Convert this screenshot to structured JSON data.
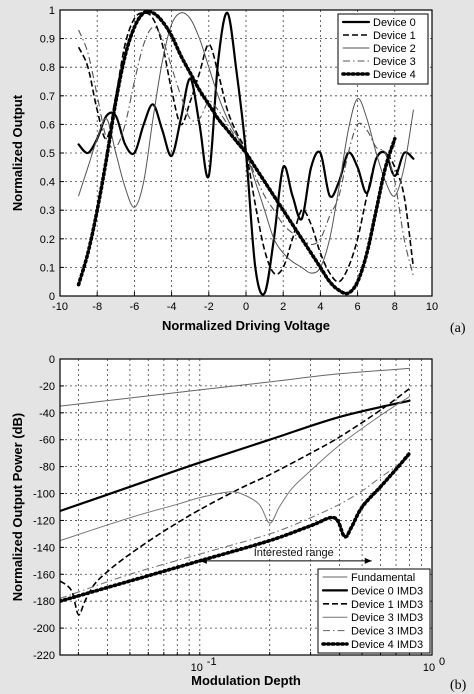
{
  "chart_data": [
    {
      "panel_label": "(a)",
      "type": "line",
      "xlabel": "Normalized Driving Voltage",
      "ylabel": "Normalized Output",
      "xlim": [
        -10,
        10
      ],
      "ylim": [
        0,
        1
      ],
      "xticks": [
        -10,
        -8,
        -6,
        -4,
        -2,
        0,
        2,
        4,
        6,
        8,
        10
      ],
      "yticks": [
        0,
        0.1,
        0.2,
        0.3,
        0.4,
        0.5,
        0.6,
        0.7,
        0.8,
        0.9,
        1
      ],
      "grid": true,
      "legend_position": "top-right",
      "series": [
        {
          "name": "Device 0",
          "style": "solid-thick",
          "color": "#000000",
          "x": [
            -9,
            -8.5,
            -8,
            -7.5,
            -7,
            -6.5,
            -6,
            -5.5,
            -5,
            -4.5,
            -4,
            -3.5,
            -3,
            -2.5,
            -2,
            -1.5,
            -1,
            -0.5,
            0,
            0.5,
            1,
            1.5,
            2,
            2.5,
            3,
            3.5,
            4,
            4.5,
            5,
            5.5,
            6,
            6.5,
            7,
            7.5,
            8,
            8.5,
            9
          ],
          "y": [
            0.53,
            0.5,
            0.55,
            0.63,
            0.63,
            0.53,
            0.5,
            0.6,
            0.67,
            0.58,
            0.49,
            0.62,
            0.76,
            0.6,
            0.42,
            0.82,
            0.99,
            0.78,
            0.5,
            0.1,
            0.01,
            0.2,
            0.45,
            0.35,
            0.27,
            0.45,
            0.5,
            0.35,
            0.4,
            0.5,
            0.45,
            0.36,
            0.48,
            0.5,
            0.42,
            0.5,
            0.48
          ]
        },
        {
          "name": "Device 1",
          "style": "dashed",
          "color": "#000000",
          "x": [
            -9,
            -8.5,
            -8,
            -7.5,
            -7,
            -6.5,
            -6,
            -5.5,
            -5,
            -4.5,
            -4,
            -3.5,
            -3,
            -2.5,
            -2,
            -1.5,
            -1,
            -0.5,
            0,
            0.5,
            1,
            1.5,
            2,
            2.5,
            3,
            3.5,
            4,
            4.5,
            5,
            5.5,
            6,
            6.5,
            7,
            7.5,
            8,
            8.5,
            9
          ],
          "y": [
            0.87,
            0.8,
            0.65,
            0.55,
            0.7,
            0.88,
            0.97,
            0.99,
            0.97,
            0.88,
            0.72,
            0.6,
            0.68,
            0.78,
            0.88,
            0.78,
            0.65,
            0.57,
            0.5,
            0.32,
            0.16,
            0.08,
            0.1,
            0.2,
            0.3,
            0.25,
            0.15,
            0.08,
            0.05,
            0.1,
            0.2,
            0.35,
            0.48,
            0.5,
            0.45,
            0.35,
            0.1
          ]
        },
        {
          "name": "Device 2",
          "style": "solid-thin",
          "color": "#555555",
          "x": [
            -9,
            -8.5,
            -8,
            -7.5,
            -7,
            -6.5,
            -6,
            -5.5,
            -5,
            -4.5,
            -4,
            -3.5,
            -3,
            -2.5,
            -2,
            -1.5,
            -1,
            -0.5,
            0,
            0.5,
            1,
            1.5,
            2,
            2.5,
            3,
            3.5,
            4,
            4.5,
            5,
            5.5,
            6,
            6.5,
            7,
            7.5,
            8,
            8.5,
            9
          ],
          "y": [
            0.35,
            0.45,
            0.55,
            0.62,
            0.5,
            0.38,
            0.31,
            0.4,
            0.62,
            0.82,
            0.95,
            0.99,
            0.97,
            0.9,
            0.8,
            0.7,
            0.62,
            0.56,
            0.5,
            0.4,
            0.3,
            0.2,
            0.15,
            0.12,
            0.1,
            0.08,
            0.1,
            0.2,
            0.38,
            0.58,
            0.69,
            0.62,
            0.5,
            0.4,
            0.35,
            0.45,
            0.65
          ]
        },
        {
          "name": "Device 3",
          "style": "dashdot",
          "color": "#555555",
          "x": [
            -9,
            -8.5,
            -8,
            -7.5,
            -7,
            -6.5,
            -6,
            -5.5,
            -5,
            -4.5,
            -4,
            -3.5,
            -3,
            -2.5,
            -2,
            -1.5,
            -1,
            -0.5,
            0,
            0.5,
            1,
            1.5,
            2,
            2.5,
            3,
            3.5,
            4,
            4.5,
            5,
            5.5,
            6,
            6.5,
            7,
            7.5,
            8,
            8.5,
            9
          ],
          "y": [
            0.93,
            0.85,
            0.7,
            0.55,
            0.52,
            0.6,
            0.75,
            0.88,
            0.94,
            0.9,
            0.8,
            0.7,
            0.62,
            0.62,
            0.68,
            0.65,
            0.6,
            0.55,
            0.5,
            0.42,
            0.35,
            0.3,
            0.25,
            0.22,
            0.2,
            0.18,
            0.2,
            0.28,
            0.35,
            0.5,
            0.6,
            0.58,
            0.52,
            0.5,
            0.4,
            0.2,
            0.07
          ]
        },
        {
          "name": "Device 4",
          "style": "dotted-thick",
          "color": "#000000",
          "x": [
            -9,
            -8.5,
            -8,
            -7.5,
            -7,
            -6.5,
            -6,
            -5.5,
            -5,
            -4.5,
            -4,
            -3.5,
            -3,
            -2.5,
            -2,
            -1.5,
            -1,
            -0.5,
            0,
            0.5,
            1,
            1.5,
            2,
            2.5,
            3,
            3.5,
            4,
            4.5,
            5,
            5.5,
            6,
            6.5,
            7,
            7.5,
            8
          ],
          "y": [
            0.04,
            0.15,
            0.3,
            0.48,
            0.68,
            0.84,
            0.94,
            0.99,
            0.99,
            0.96,
            0.91,
            0.84,
            0.78,
            0.72,
            0.67,
            0.62,
            0.58,
            0.54,
            0.5,
            0.45,
            0.4,
            0.35,
            0.3,
            0.25,
            0.2,
            0.15,
            0.1,
            0.05,
            0.02,
            0.01,
            0.05,
            0.15,
            0.3,
            0.45,
            0.55
          ]
        }
      ]
    },
    {
      "panel_label": "(b)",
      "type": "line",
      "xscale": "log",
      "xlabel": "Modulation Depth",
      "ylabel": "Normalized Output Power (dB)",
      "xlim": [
        0.025,
        1
      ],
      "ylim": [
        -220,
        0
      ],
      "xticks_labels": [
        "10",
        "10"
      ],
      "xticks_exponents": [
        "-1",
        "0"
      ],
      "xticks_values": [
        0.1,
        1
      ],
      "yticks": [
        -220,
        -200,
        -180,
        -160,
        -140,
        -120,
        -100,
        -80,
        -60,
        -40,
        -20,
        0
      ],
      "grid": true,
      "legend_position": "bottom-right",
      "annotation": "Interested range",
      "annotation_range": [
        0.1,
        0.55
      ],
      "annotation_y": -150,
      "series": [
        {
          "name": "Fundamental",
          "style": "solid-thin",
          "color": "#666666",
          "x": [
            0.025,
            0.05,
            0.1,
            0.2,
            0.4,
            0.8
          ],
          "y": [
            -35,
            -29,
            -23,
            -17,
            -11,
            -7
          ]
        },
        {
          "name": "Device 0 IMD3",
          "style": "solid-thick",
          "color": "#000000",
          "x": [
            0.025,
            0.05,
            0.1,
            0.2,
            0.4,
            0.8
          ],
          "y": [
            -113,
            -95,
            -77,
            -60,
            -43,
            -31
          ]
        },
        {
          "name": "Device 1 IMD3",
          "style": "dashed",
          "color": "#000000",
          "x": [
            0.025,
            0.028,
            0.03,
            0.032,
            0.035,
            0.04,
            0.05,
            0.07,
            0.1,
            0.15,
            0.2,
            0.3,
            0.4,
            0.6,
            0.8
          ],
          "y": [
            -165,
            -172,
            -190,
            -180,
            -168,
            -158,
            -145,
            -128,
            -112,
            -96,
            -86,
            -70,
            -58,
            -38,
            -22
          ]
        },
        {
          "name": "Device 3 IMD3",
          "style": "solid-thin",
          "color": "#777777",
          "x": [
            0.025,
            0.05,
            0.08,
            0.1,
            0.13,
            0.15,
            0.18,
            0.2,
            0.22,
            0.25,
            0.3,
            0.4,
            0.6,
            0.8
          ],
          "y": [
            -135,
            -118,
            -108,
            -103,
            -99,
            -100,
            -108,
            -122,
            -110,
            -96,
            -83,
            -64,
            -42,
            -28
          ]
        },
        {
          "name": "Device 3 IMD3",
          "style": "dashdot",
          "color": "#777777",
          "x": [
            0.025,
            0.05,
            0.1,
            0.2,
            0.3,
            0.4,
            0.5,
            0.6,
            0.7,
            0.8
          ],
          "y": [
            -178,
            -160,
            -145,
            -130,
            -118,
            -108,
            -98,
            -88,
            -80,
            -72
          ]
        },
        {
          "name": "Device 4 IMD3",
          "style": "dotted-thick",
          "color": "#000000",
          "x": [
            0.025,
            0.05,
            0.1,
            0.2,
            0.3,
            0.38,
            0.42,
            0.45,
            0.5,
            0.6,
            0.7,
            0.8
          ],
          "y": [
            -180,
            -165,
            -150,
            -135,
            -124,
            -118,
            -132,
            -125,
            -110,
            -95,
            -82,
            -70
          ]
        }
      ]
    }
  ]
}
